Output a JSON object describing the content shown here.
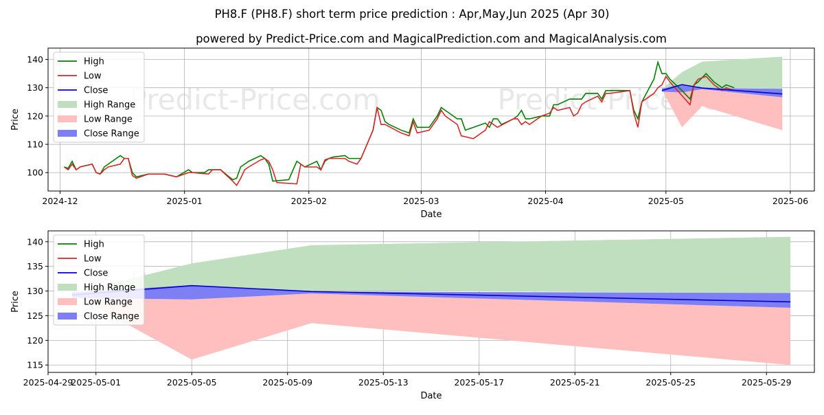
{
  "titles": {
    "line1": "PH8.F (PH8.F) short term price prediction : Apr,May,Jun 2025 (Apr 30)",
    "line2": "powered by Predict-Price.com and MagicalPrediction.com and MagicalAnalysis.com"
  },
  "watermark": "Predict-Price.com",
  "colors": {
    "high": "#008000",
    "low": "#d62728",
    "close": "#0000cc",
    "high_range": "#bfdfbf",
    "low_range": "#ffbfbf",
    "close_range": "#7f7ff5",
    "grid": "#b0b0b0"
  },
  "chart_data": [
    {
      "type": "line",
      "xlabel": "Date",
      "ylabel": "Price",
      "xlim": [
        "2024-11-28",
        "2025-06-07"
      ],
      "ylim": [
        93.5,
        144
      ],
      "xticks": [
        {
          "date": "2024-12-01",
          "label": "2024-12"
        },
        {
          "date": "2025-01-01",
          "label": "2025-01"
        },
        {
          "date": "2025-02-01",
          "label": "2025-02"
        },
        {
          "date": "2025-03-01",
          "label": "2025-03"
        },
        {
          "date": "2025-04-01",
          "label": "2025-04"
        },
        {
          "date": "2025-05-01",
          "label": "2025-05"
        },
        {
          "date": "2025-06-01",
          "label": "2025-06"
        }
      ],
      "yticks": [
        100,
        110,
        120,
        130,
        140
      ],
      "grid": true,
      "legend_position": "top-left",
      "legend": [
        "High",
        "Low",
        "Close",
        "High Range",
        "Low Range",
        "Close Range"
      ],
      "history": {
        "high": [
          [
            "2024-12-02",
            102
          ],
          [
            "2024-12-03",
            101.5
          ],
          [
            "2024-12-04",
            104
          ],
          [
            "2024-12-05",
            101
          ],
          [
            "2024-12-06",
            102
          ],
          [
            "2024-12-09",
            103
          ],
          [
            "2024-12-10",
            100
          ],
          [
            "2024-12-11",
            99.5
          ],
          [
            "2024-12-12",
            102
          ],
          [
            "2024-12-16",
            106
          ],
          [
            "2024-12-17",
            105
          ],
          [
            "2024-12-18",
            105
          ],
          [
            "2024-12-19",
            100
          ],
          [
            "2024-12-20",
            98.5
          ],
          [
            "2024-12-23",
            99.5
          ],
          [
            "2024-12-27",
            99.5
          ],
          [
            "2024-12-30",
            98.5
          ],
          [
            "2025-01-02",
            101
          ],
          [
            "2025-01-03",
            100
          ],
          [
            "2025-01-06",
            100
          ],
          [
            "2025-01-07",
            101
          ],
          [
            "2025-01-10",
            101
          ],
          [
            "2025-01-13",
            97.5
          ],
          [
            "2025-01-14",
            98
          ],
          [
            "2025-01-15",
            102
          ],
          [
            "2025-01-16",
            103
          ],
          [
            "2025-01-17",
            104
          ],
          [
            "2025-01-20",
            106
          ],
          [
            "2025-01-21",
            105
          ],
          [
            "2025-01-22",
            103
          ],
          [
            "2025-01-23",
            97
          ],
          [
            "2025-01-27",
            97.5
          ],
          [
            "2025-01-29",
            104
          ],
          [
            "2025-01-31",
            102
          ],
          [
            "2025-02-03",
            104
          ],
          [
            "2025-02-04",
            101
          ],
          [
            "2025-02-05",
            104
          ],
          [
            "2025-02-06",
            105
          ],
          [
            "2025-02-07",
            105.5
          ],
          [
            "2025-02-10",
            106
          ],
          [
            "2025-02-11",
            105
          ],
          [
            "2025-02-13",
            105
          ],
          [
            "2025-02-14",
            105
          ],
          [
            "2025-02-17",
            115
          ],
          [
            "2025-02-18",
            123
          ],
          [
            "2025-02-19",
            122
          ],
          [
            "2025-02-20",
            118
          ],
          [
            "2025-02-21",
            117
          ],
          [
            "2025-02-24",
            115
          ],
          [
            "2025-02-26",
            114
          ],
          [
            "2025-02-27",
            119
          ],
          [
            "2025-02-28",
            116
          ],
          [
            "2025-03-03",
            116
          ],
          [
            "2025-03-05",
            120
          ],
          [
            "2025-03-06",
            123
          ],
          [
            "2025-03-07",
            122
          ],
          [
            "2025-03-10",
            119
          ],
          [
            "2025-03-11",
            119
          ],
          [
            "2025-03-12",
            115
          ],
          [
            "2025-03-14",
            116
          ],
          [
            "2025-03-17",
            117.5
          ],
          [
            "2025-03-18",
            116
          ],
          [
            "2025-03-19",
            119
          ],
          [
            "2025-03-20",
            119
          ],
          [
            "2025-03-21",
            117
          ],
          [
            "2025-03-24",
            119
          ],
          [
            "2025-03-25",
            120
          ],
          [
            "2025-03-26",
            122
          ],
          [
            "2025-03-27",
            119
          ],
          [
            "2025-03-28",
            119
          ],
          [
            "2025-03-31",
            120
          ],
          [
            "2025-04-02",
            120
          ],
          [
            "2025-04-03",
            124
          ],
          [
            "2025-04-04",
            124
          ],
          [
            "2025-04-07",
            126
          ],
          [
            "2025-04-10",
            126
          ],
          [
            "2025-04-11",
            128
          ],
          [
            "2025-04-14",
            128
          ],
          [
            "2025-04-15",
            126
          ],
          [
            "2025-04-16",
            129
          ],
          [
            "2025-04-17",
            129
          ],
          [
            "2025-04-22",
            129
          ],
          [
            "2025-04-23",
            122
          ],
          [
            "2025-04-24",
            119
          ],
          [
            "2025-04-25",
            125
          ],
          [
            "2025-04-28",
            133
          ],
          [
            "2025-04-29",
            139
          ],
          [
            "2025-04-30",
            135
          ],
          [
            "2025-05-01",
            135
          ],
          [
            "2025-05-02",
            133
          ],
          [
            "2025-05-05",
            129
          ],
          [
            "2025-05-07",
            126
          ],
          [
            "2025-05-08",
            131
          ],
          [
            "2025-05-09",
            132
          ],
          [
            "2025-05-11",
            135
          ],
          [
            "2025-05-13",
            132
          ],
          [
            "2025-05-15",
            130
          ],
          [
            "2025-05-16",
            131
          ],
          [
            "2025-05-18",
            130
          ]
        ],
        "low": [
          [
            "2024-12-02",
            102
          ],
          [
            "2024-12-03",
            101
          ],
          [
            "2024-12-04",
            103
          ],
          [
            "2024-12-05",
            101
          ],
          [
            "2024-12-06",
            102
          ],
          [
            "2024-12-09",
            103
          ],
          [
            "2024-12-10",
            100
          ],
          [
            "2024-12-11",
            99.5
          ],
          [
            "2024-12-12",
            101
          ],
          [
            "2024-12-13",
            102
          ],
          [
            "2024-12-16",
            103
          ],
          [
            "2024-12-17",
            105
          ],
          [
            "2024-12-18",
            105
          ],
          [
            "2024-12-19",
            99
          ],
          [
            "2024-12-20",
            98
          ],
          [
            "2024-12-23",
            99.5
          ],
          [
            "2024-12-27",
            99.5
          ],
          [
            "2024-12-30",
            98.5
          ],
          [
            "2025-01-02",
            100
          ],
          [
            "2025-01-03",
            100
          ],
          [
            "2025-01-07",
            99.5
          ],
          [
            "2025-01-08",
            101
          ],
          [
            "2025-01-10",
            101
          ],
          [
            "2025-01-13",
            97
          ],
          [
            "2025-01-14",
            95.5
          ],
          [
            "2025-01-15",
            98
          ],
          [
            "2025-01-16",
            101
          ],
          [
            "2025-01-17",
            102
          ],
          [
            "2025-01-20",
            104.5
          ],
          [
            "2025-01-21",
            105
          ],
          [
            "2025-01-22",
            104
          ],
          [
            "2025-01-23",
            101
          ],
          [
            "2025-01-24",
            96.5
          ],
          [
            "2025-01-29",
            96
          ],
          [
            "2025-01-30",
            103
          ],
          [
            "2025-01-31",
            102
          ],
          [
            "2025-02-03",
            102
          ],
          [
            "2025-02-04",
            101
          ],
          [
            "2025-02-05",
            104.5
          ],
          [
            "2025-02-06",
            105
          ],
          [
            "2025-02-10",
            105
          ],
          [
            "2025-02-11",
            104
          ],
          [
            "2025-02-13",
            103
          ],
          [
            "2025-02-14",
            105
          ],
          [
            "2025-02-17",
            115
          ],
          [
            "2025-02-18",
            123
          ],
          [
            "2025-02-19",
            117
          ],
          [
            "2025-02-20",
            117
          ],
          [
            "2025-02-24",
            114
          ],
          [
            "2025-02-26",
            113
          ],
          [
            "2025-02-27",
            118
          ],
          [
            "2025-02-28",
            114
          ],
          [
            "2025-03-03",
            115
          ],
          [
            "2025-03-05",
            119
          ],
          [
            "2025-03-06",
            122
          ],
          [
            "2025-03-07",
            120
          ],
          [
            "2025-03-10",
            117
          ],
          [
            "2025-03-11",
            113
          ],
          [
            "2025-03-14",
            112
          ],
          [
            "2025-03-17",
            115
          ],
          [
            "2025-03-18",
            118
          ],
          [
            "2025-03-19",
            117
          ],
          [
            "2025-03-20",
            116
          ],
          [
            "2025-03-24",
            119
          ],
          [
            "2025-03-25",
            119
          ],
          [
            "2025-03-26",
            117
          ],
          [
            "2025-03-27",
            118
          ],
          [
            "2025-03-28",
            117
          ],
          [
            "2025-03-31",
            120
          ],
          [
            "2025-04-02",
            121
          ],
          [
            "2025-04-03",
            123
          ],
          [
            "2025-04-04",
            122
          ],
          [
            "2025-04-07",
            123
          ],
          [
            "2025-04-08",
            120
          ],
          [
            "2025-04-09",
            121
          ],
          [
            "2025-04-10",
            124
          ],
          [
            "2025-04-11",
            125
          ],
          [
            "2025-04-14",
            127
          ],
          [
            "2025-04-15",
            125
          ],
          [
            "2025-04-16",
            128
          ],
          [
            "2025-04-17",
            128
          ],
          [
            "2025-04-22",
            129
          ],
          [
            "2025-04-23",
            121
          ],
          [
            "2025-04-24",
            116
          ],
          [
            "2025-04-25",
            125
          ],
          [
            "2025-04-28",
            128
          ],
          [
            "2025-04-29",
            130
          ],
          [
            "2025-04-30",
            131
          ],
          [
            "2025-05-01",
            134
          ],
          [
            "2025-05-02",
            132
          ],
          [
            "2025-05-07",
            124
          ],
          [
            "2025-05-08",
            131
          ],
          [
            "2025-05-09",
            133
          ],
          [
            "2025-05-11",
            134
          ],
          [
            "2025-05-13",
            131
          ],
          [
            "2025-05-15",
            129
          ],
          [
            "2025-05-16",
            130
          ],
          [
            "2025-05-18",
            129
          ]
        ]
      },
      "forecast": {
        "x": [
          "2025-04-30",
          "2025-05-05",
          "2025-05-10",
          "2025-05-30"
        ],
        "close": [
          129,
          131.1,
          129.9,
          127.8
        ],
        "high_range": [
          [
            129.5,
            129.9
          ],
          [
            135.5,
            130
          ],
          [
            139.2,
            130.1
          ],
          [
            141,
            129.6
          ]
        ],
        "low_range": [
          [
            129.4,
            128.6
          ],
          [
            116,
            128.3
          ],
          [
            123.5,
            129.5
          ],
          [
            115,
            126.6
          ]
        ],
        "close_range": [
          [
            129.7,
            128.6
          ],
          [
            131.2,
            128.3
          ],
          [
            129.9,
            129.5
          ],
          [
            129.6,
            126.6
          ]
        ]
      }
    },
    {
      "type": "line",
      "xlabel": "Date",
      "ylabel": "Price",
      "xlim": [
        "2025-04-29",
        "2025-05-31"
      ],
      "ylim": [
        113.5,
        142.2
      ],
      "xticks": [
        {
          "date": "2025-04-29",
          "label": "2025-04-29"
        },
        {
          "date": "2025-05-01",
          "label": "2025-05-01"
        },
        {
          "date": "2025-05-05",
          "label": "2025-05-05"
        },
        {
          "date": "2025-05-09",
          "label": "2025-05-09"
        },
        {
          "date": "2025-05-13",
          "label": "2025-05-13"
        },
        {
          "date": "2025-05-17",
          "label": "2025-05-17"
        },
        {
          "date": "2025-05-21",
          "label": "2025-05-21"
        },
        {
          "date": "2025-05-25",
          "label": "2025-05-25"
        },
        {
          "date": "2025-05-29",
          "label": "2025-05-29"
        }
      ],
      "yticks": [
        115,
        120,
        125,
        130,
        135,
        140
      ],
      "grid": true,
      "legend_position": "top-left",
      "legend": [
        "High",
        "Low",
        "Close",
        "High Range",
        "Low Range",
        "Close Range"
      ],
      "forecast": {
        "x": [
          "2025-04-30",
          "2025-05-05",
          "2025-05-10",
          "2025-05-30"
        ],
        "close": [
          129.2,
          131.1,
          129.9,
          127.8
        ],
        "high_range": [
          [
            129.5,
            129.9
          ],
          [
            135.6,
            130
          ],
          [
            139.3,
            130.1
          ],
          [
            141,
            129.6
          ]
        ],
        "low_range": [
          [
            129.4,
            128.6
          ],
          [
            116.1,
            128.3
          ],
          [
            123.5,
            129.5
          ],
          [
            115,
            126.6
          ]
        ],
        "close_range": [
          [
            129.7,
            128.6
          ],
          [
            131.2,
            128.3
          ],
          [
            129.9,
            129.5
          ],
          [
            129.6,
            126.6
          ]
        ]
      }
    }
  ]
}
